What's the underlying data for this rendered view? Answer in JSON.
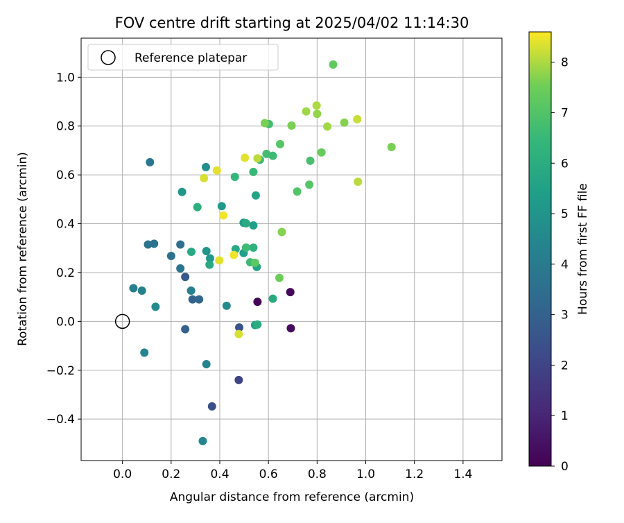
{
  "chart_data": {
    "type": "scatter",
    "title": "FOV centre drift starting at 2025/04/02 11:14:30",
    "xlabel": "Angular distance from reference (arcmin)",
    "ylabel": "Rotation from reference (arcmin)",
    "xlim": [
      -0.17,
      1.56
    ],
    "ylim": [
      -0.57,
      1.16
    ],
    "xticks": [
      0.0,
      0.2,
      0.4,
      0.6,
      0.8,
      1.0,
      1.2,
      1.4
    ],
    "xtick_labels": [
      "0.0",
      "0.2",
      "0.4",
      "0.6",
      "0.8",
      "1.0",
      "1.2",
      "1.4"
    ],
    "yticks": [
      -0.4,
      -0.2,
      0.0,
      0.2,
      0.4,
      0.6,
      0.8,
      1.0
    ],
    "ytick_labels": [
      "−0.4",
      "−0.2",
      "0.0",
      "0.2",
      "0.4",
      "0.6",
      "0.8",
      "1.0"
    ],
    "grid": true,
    "legend": {
      "label": "Reference platepar",
      "placement": "top-left"
    },
    "reference_point": {
      "x": 0.0,
      "y": 0.0
    },
    "colorbar": {
      "label": "Hours from first FF file",
      "range": [
        0,
        8.6
      ],
      "ticks": [
        0,
        1,
        2,
        3,
        4,
        5,
        6,
        7,
        8
      ],
      "tick_labels": [
        "0",
        "1",
        "2",
        "3",
        "4",
        "5",
        "6",
        "7",
        "8"
      ],
      "colormap": "viridis"
    },
    "points": [
      {
        "x": 0.555,
        "y": 0.08,
        "h": 0.1
      },
      {
        "x": 0.69,
        "y": 0.12,
        "h": 0.2
      },
      {
        "x": 0.692,
        "y": -0.028,
        "h": 0.3
      },
      {
        "x": 0.478,
        "y": -0.24,
        "h": 2.0
      },
      {
        "x": 0.368,
        "y": -0.348,
        "h": 2.4
      },
      {
        "x": 0.48,
        "y": -0.025,
        "h": 2.5
      },
      {
        "x": 0.258,
        "y": 0.182,
        "h": 2.7
      },
      {
        "x": 0.258,
        "y": -0.032,
        "h": 3.0
      },
      {
        "x": 0.288,
        "y": 0.09,
        "h": 3.0
      },
      {
        "x": 0.315,
        "y": 0.09,
        "h": 3.2
      },
      {
        "x": 0.2,
        "y": 0.268,
        "h": 3.6
      },
      {
        "x": 0.238,
        "y": 0.315,
        "h": 3.5
      },
      {
        "x": 0.105,
        "y": 0.315,
        "h": 3.7
      },
      {
        "x": 0.13,
        "y": 0.318,
        "h": 3.6
      },
      {
        "x": 0.113,
        "y": 0.652,
        "h": 3.8
      },
      {
        "x": 0.238,
        "y": 0.217,
        "h": 3.7
      },
      {
        "x": 0.282,
        "y": 0.126,
        "h": 4.2
      },
      {
        "x": 0.045,
        "y": 0.136,
        "h": 4.1
      },
      {
        "x": 0.08,
        "y": 0.126,
        "h": 4.2
      },
      {
        "x": 0.09,
        "y": -0.128,
        "h": 4.4
      },
      {
        "x": 0.345,
        "y": -0.175,
        "h": 4.3
      },
      {
        "x": 0.33,
        "y": -0.49,
        "h": 4.5
      },
      {
        "x": 0.136,
        "y": 0.06,
        "h": 4.6
      },
      {
        "x": 0.428,
        "y": 0.064,
        "h": 4.6
      },
      {
        "x": 0.343,
        "y": 0.632,
        "h": 4.8
      },
      {
        "x": 0.245,
        "y": 0.53,
        "h": 5.1
      },
      {
        "x": 0.345,
        "y": 0.288,
        "h": 5.0
      },
      {
        "x": 0.408,
        "y": 0.472,
        "h": 5.2
      },
      {
        "x": 0.36,
        "y": 0.258,
        "h": 5.2
      },
      {
        "x": 0.498,
        "y": 0.404,
        "h": 5.3
      },
      {
        "x": 0.538,
        "y": 0.393,
        "h": 5.4
      },
      {
        "x": 0.498,
        "y": 0.28,
        "h": 5.4
      },
      {
        "x": 0.545,
        "y": -0.015,
        "h": 5.5
      },
      {
        "x": 0.548,
        "y": 0.516,
        "h": 5.6
      },
      {
        "x": 0.552,
        "y": 0.223,
        "h": 5.6
      },
      {
        "x": 0.465,
        "y": 0.296,
        "h": 5.8
      },
      {
        "x": 0.283,
        "y": 0.285,
        "h": 5.8
      },
      {
        "x": 0.358,
        "y": 0.232,
        "h": 5.8
      },
      {
        "x": 0.508,
        "y": 0.402,
        "h": 5.9
      },
      {
        "x": 0.618,
        "y": 0.093,
        "h": 5.9
      },
      {
        "x": 0.555,
        "y": -0.013,
        "h": 6.0
      },
      {
        "x": 0.308,
        "y": 0.468,
        "h": 6.1
      },
      {
        "x": 0.538,
        "y": 0.302,
        "h": 6.2
      },
      {
        "x": 0.462,
        "y": 0.592,
        "h": 6.4
      },
      {
        "x": 0.538,
        "y": 0.612,
        "h": 6.5
      },
      {
        "x": 0.508,
        "y": 0.302,
        "h": 6.6
      },
      {
        "x": 0.525,
        "y": 0.242,
        "h": 6.6
      },
      {
        "x": 0.565,
        "y": 0.662,
        "h": 6.5
      },
      {
        "x": 0.592,
        "y": 0.686,
        "h": 6.7
      },
      {
        "x": 0.618,
        "y": 0.678,
        "h": 6.6
      },
      {
        "x": 0.602,
        "y": 0.808,
        "h": 6.7
      },
      {
        "x": 0.772,
        "y": 0.658,
        "h": 6.8
      },
      {
        "x": 0.718,
        "y": 0.532,
        "h": 7.0
      },
      {
        "x": 0.768,
        "y": 0.56,
        "h": 7.1
      },
      {
        "x": 0.648,
        "y": 0.726,
        "h": 7.1
      },
      {
        "x": 0.545,
        "y": 0.24,
        "h": 7.2
      },
      {
        "x": 0.585,
        "y": 0.812,
        "h": 7.6
      },
      {
        "x": 0.695,
        "y": 0.802,
        "h": 7.6
      },
      {
        "x": 0.866,
        "y": 1.052,
        "h": 7.3
      },
      {
        "x": 0.818,
        "y": 0.692,
        "h": 7.4
      },
      {
        "x": 0.655,
        "y": 0.366,
        "h": 7.7
      },
      {
        "x": 0.645,
        "y": 0.178,
        "h": 7.5
      },
      {
        "x": 1.106,
        "y": 0.714,
        "h": 7.6
      },
      {
        "x": 0.755,
        "y": 0.86,
        "h": 7.9
      },
      {
        "x": 0.798,
        "y": 0.884,
        "h": 8.0
      },
      {
        "x": 0.8,
        "y": 0.85,
        "h": 7.8
      },
      {
        "x": 0.842,
        "y": 0.798,
        "h": 7.9
      },
      {
        "x": 0.912,
        "y": 0.814,
        "h": 7.7
      },
      {
        "x": 0.555,
        "y": 0.668,
        "h": 8.1
      },
      {
        "x": 0.968,
        "y": 0.572,
        "h": 8.1
      },
      {
        "x": 0.965,
        "y": 0.828,
        "h": 8.2
      },
      {
        "x": 0.503,
        "y": 0.67,
        "h": 8.4
      },
      {
        "x": 0.388,
        "y": 0.618,
        "h": 8.4
      },
      {
        "x": 0.335,
        "y": 0.587,
        "h": 8.3
      },
      {
        "x": 0.415,
        "y": 0.434,
        "h": 8.5
      },
      {
        "x": 0.398,
        "y": 0.25,
        "h": 8.4
      },
      {
        "x": 0.458,
        "y": 0.272,
        "h": 8.5
      },
      {
        "x": 0.478,
        "y": -0.052,
        "h": 8.3
      }
    ]
  }
}
